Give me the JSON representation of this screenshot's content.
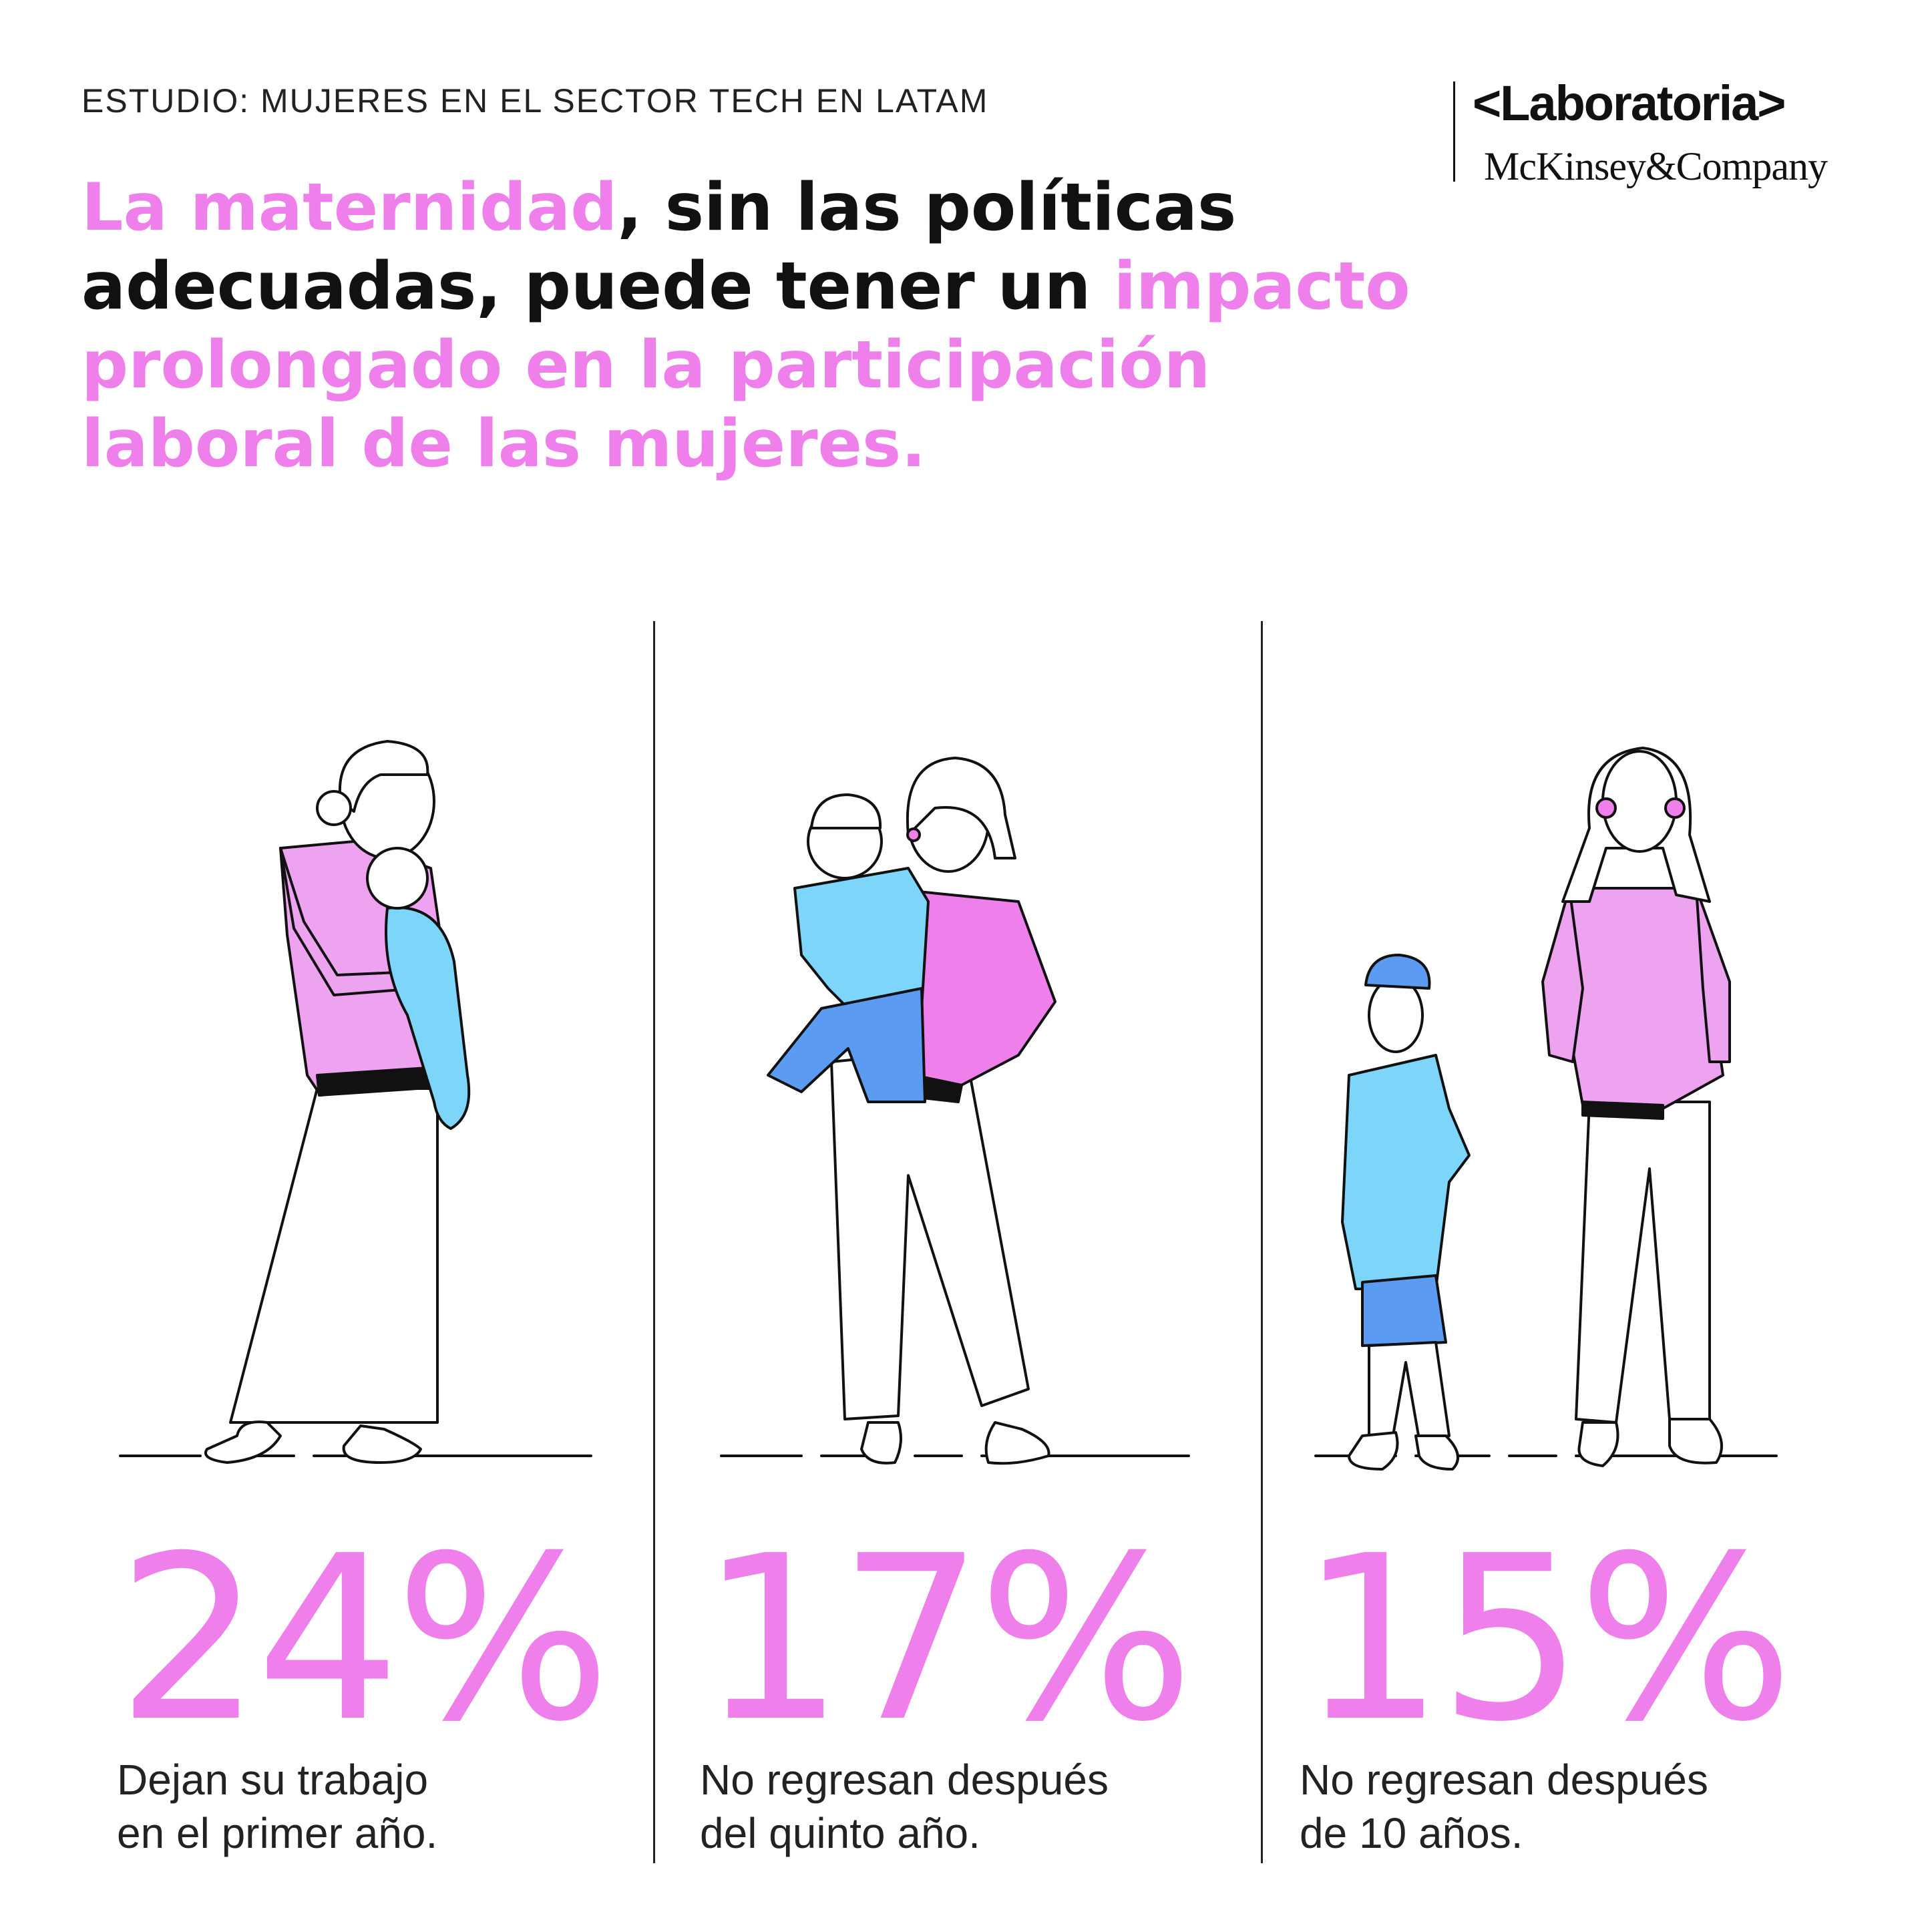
{
  "header": {
    "eyebrow": "ESTUDIO: MUJERES EN EL SECTOR TECH EN LATAM"
  },
  "logos": {
    "laboratoria": "<Laboratoria>",
    "mckinsey": "McKinsey&Company"
  },
  "headline": {
    "part1": "La maternidad",
    "part2": ", sin las políticas adecuadas, puede tener un ",
    "part3": "impacto prolongado en la participación laboral de las mujeres."
  },
  "colors": {
    "pink": "#EE7FEB",
    "light_pink": "#EEA3F0",
    "light_blue": "#7DD5FA",
    "mid_blue": "#5B9BF2",
    "ink": "#111111"
  },
  "stats": [
    {
      "value": "24%",
      "line1": "Dejan su trabajo",
      "line2": "en el primer año."
    },
    {
      "value": "17%",
      "line1": "No regresan después",
      "line2": "del quinto año."
    },
    {
      "value": "15%",
      "line1": "No regresan después",
      "line2": "de 10 años."
    }
  ]
}
